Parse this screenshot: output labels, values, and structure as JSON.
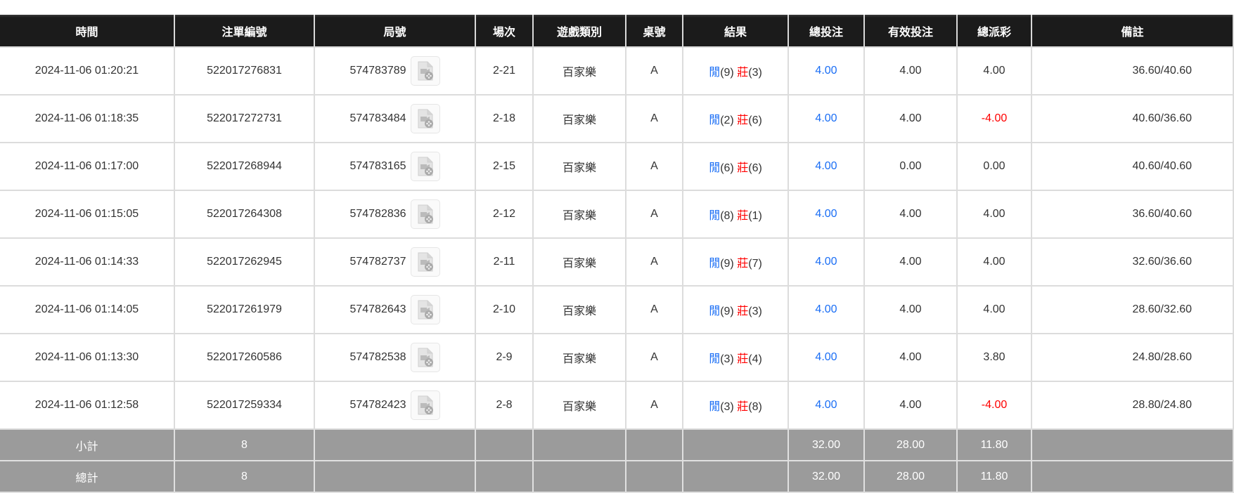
{
  "headers": [
    "時間",
    "注單編號",
    "局號",
    "場次",
    "遊戲類別",
    "桌號",
    "結果",
    "總投注",
    "有效投注",
    "總派彩",
    "備註"
  ],
  "colors": {
    "header_bg": "#1b1b1b",
    "summary_bg": "#9b9b9b",
    "blue": "#1a6ef5",
    "red": "#ff0000"
  },
  "icon": "video-file-icon",
  "rows": [
    {
      "time": "2024-11-06 01:20:21",
      "bet_id": "522017276831",
      "round": "574783789",
      "session": "2-21",
      "game": "百家樂",
      "table": "A",
      "player_label": "閒",
      "player": "(9)",
      "banker_label": "莊",
      "banker": "(3)",
      "bet": "4.00",
      "valid": "4.00",
      "payout": "4.00",
      "payout_negative": false,
      "memo": "36.60/40.60"
    },
    {
      "time": "2024-11-06 01:18:35",
      "bet_id": "522017272731",
      "round": "574783484",
      "session": "2-18",
      "game": "百家樂",
      "table": "A",
      "player_label": "閒",
      "player": "(2)",
      "banker_label": "莊",
      "banker": "(6)",
      "bet": "4.00",
      "valid": "4.00",
      "payout": "-4.00",
      "payout_negative": true,
      "memo": "40.60/36.60"
    },
    {
      "time": "2024-11-06 01:17:00",
      "bet_id": "522017268944",
      "round": "574783165",
      "session": "2-15",
      "game": "百家樂",
      "table": "A",
      "player_label": "閒",
      "player": "(6)",
      "banker_label": "莊",
      "banker": "(6)",
      "bet": "4.00",
      "valid": "0.00",
      "payout": "0.00",
      "payout_negative": false,
      "memo": "40.60/40.60"
    },
    {
      "time": "2024-11-06 01:15:05",
      "bet_id": "522017264308",
      "round": "574782836",
      "session": "2-12",
      "game": "百家樂",
      "table": "A",
      "player_label": "閒",
      "player": "(8)",
      "banker_label": "莊",
      "banker": "(1)",
      "bet": "4.00",
      "valid": "4.00",
      "payout": "4.00",
      "payout_negative": false,
      "memo": "36.60/40.60"
    },
    {
      "time": "2024-11-06 01:14:33",
      "bet_id": "522017262945",
      "round": "574782737",
      "session": "2-11",
      "game": "百家樂",
      "table": "A",
      "player_label": "閒",
      "player": "(9)",
      "banker_label": "莊",
      "banker": "(7)",
      "bet": "4.00",
      "valid": "4.00",
      "payout": "4.00",
      "payout_negative": false,
      "memo": "32.60/36.60"
    },
    {
      "time": "2024-11-06 01:14:05",
      "bet_id": "522017261979",
      "round": "574782643",
      "session": "2-10",
      "game": "百家樂",
      "table": "A",
      "player_label": "閒",
      "player": "(9)",
      "banker_label": "莊",
      "banker": "(3)",
      "bet": "4.00",
      "valid": "4.00",
      "payout": "4.00",
      "payout_negative": false,
      "memo": "28.60/32.60"
    },
    {
      "time": "2024-11-06 01:13:30",
      "bet_id": "522017260586",
      "round": "574782538",
      "session": "2-9",
      "game": "百家樂",
      "table": "A",
      "player_label": "閒",
      "player": "(3)",
      "banker_label": "莊",
      "banker": "(4)",
      "bet": "4.00",
      "valid": "4.00",
      "payout": "3.80",
      "payout_negative": false,
      "memo": "24.80/28.60"
    },
    {
      "time": "2024-11-06 01:12:58",
      "bet_id": "522017259334",
      "round": "574782423",
      "session": "2-8",
      "game": "百家樂",
      "table": "A",
      "player_label": "閒",
      "player": "(3)",
      "banker_label": "莊",
      "banker": "(8)",
      "bet": "4.00",
      "valid": "4.00",
      "payout": "-4.00",
      "payout_negative": true,
      "memo": "28.80/24.80"
    }
  ],
  "summary": [
    {
      "label": "小計",
      "count": "8",
      "bet": "32.00",
      "valid": "28.00",
      "payout": "11.80"
    },
    {
      "label": "總計",
      "count": "8",
      "bet": "32.00",
      "valid": "28.00",
      "payout": "11.80"
    }
  ]
}
